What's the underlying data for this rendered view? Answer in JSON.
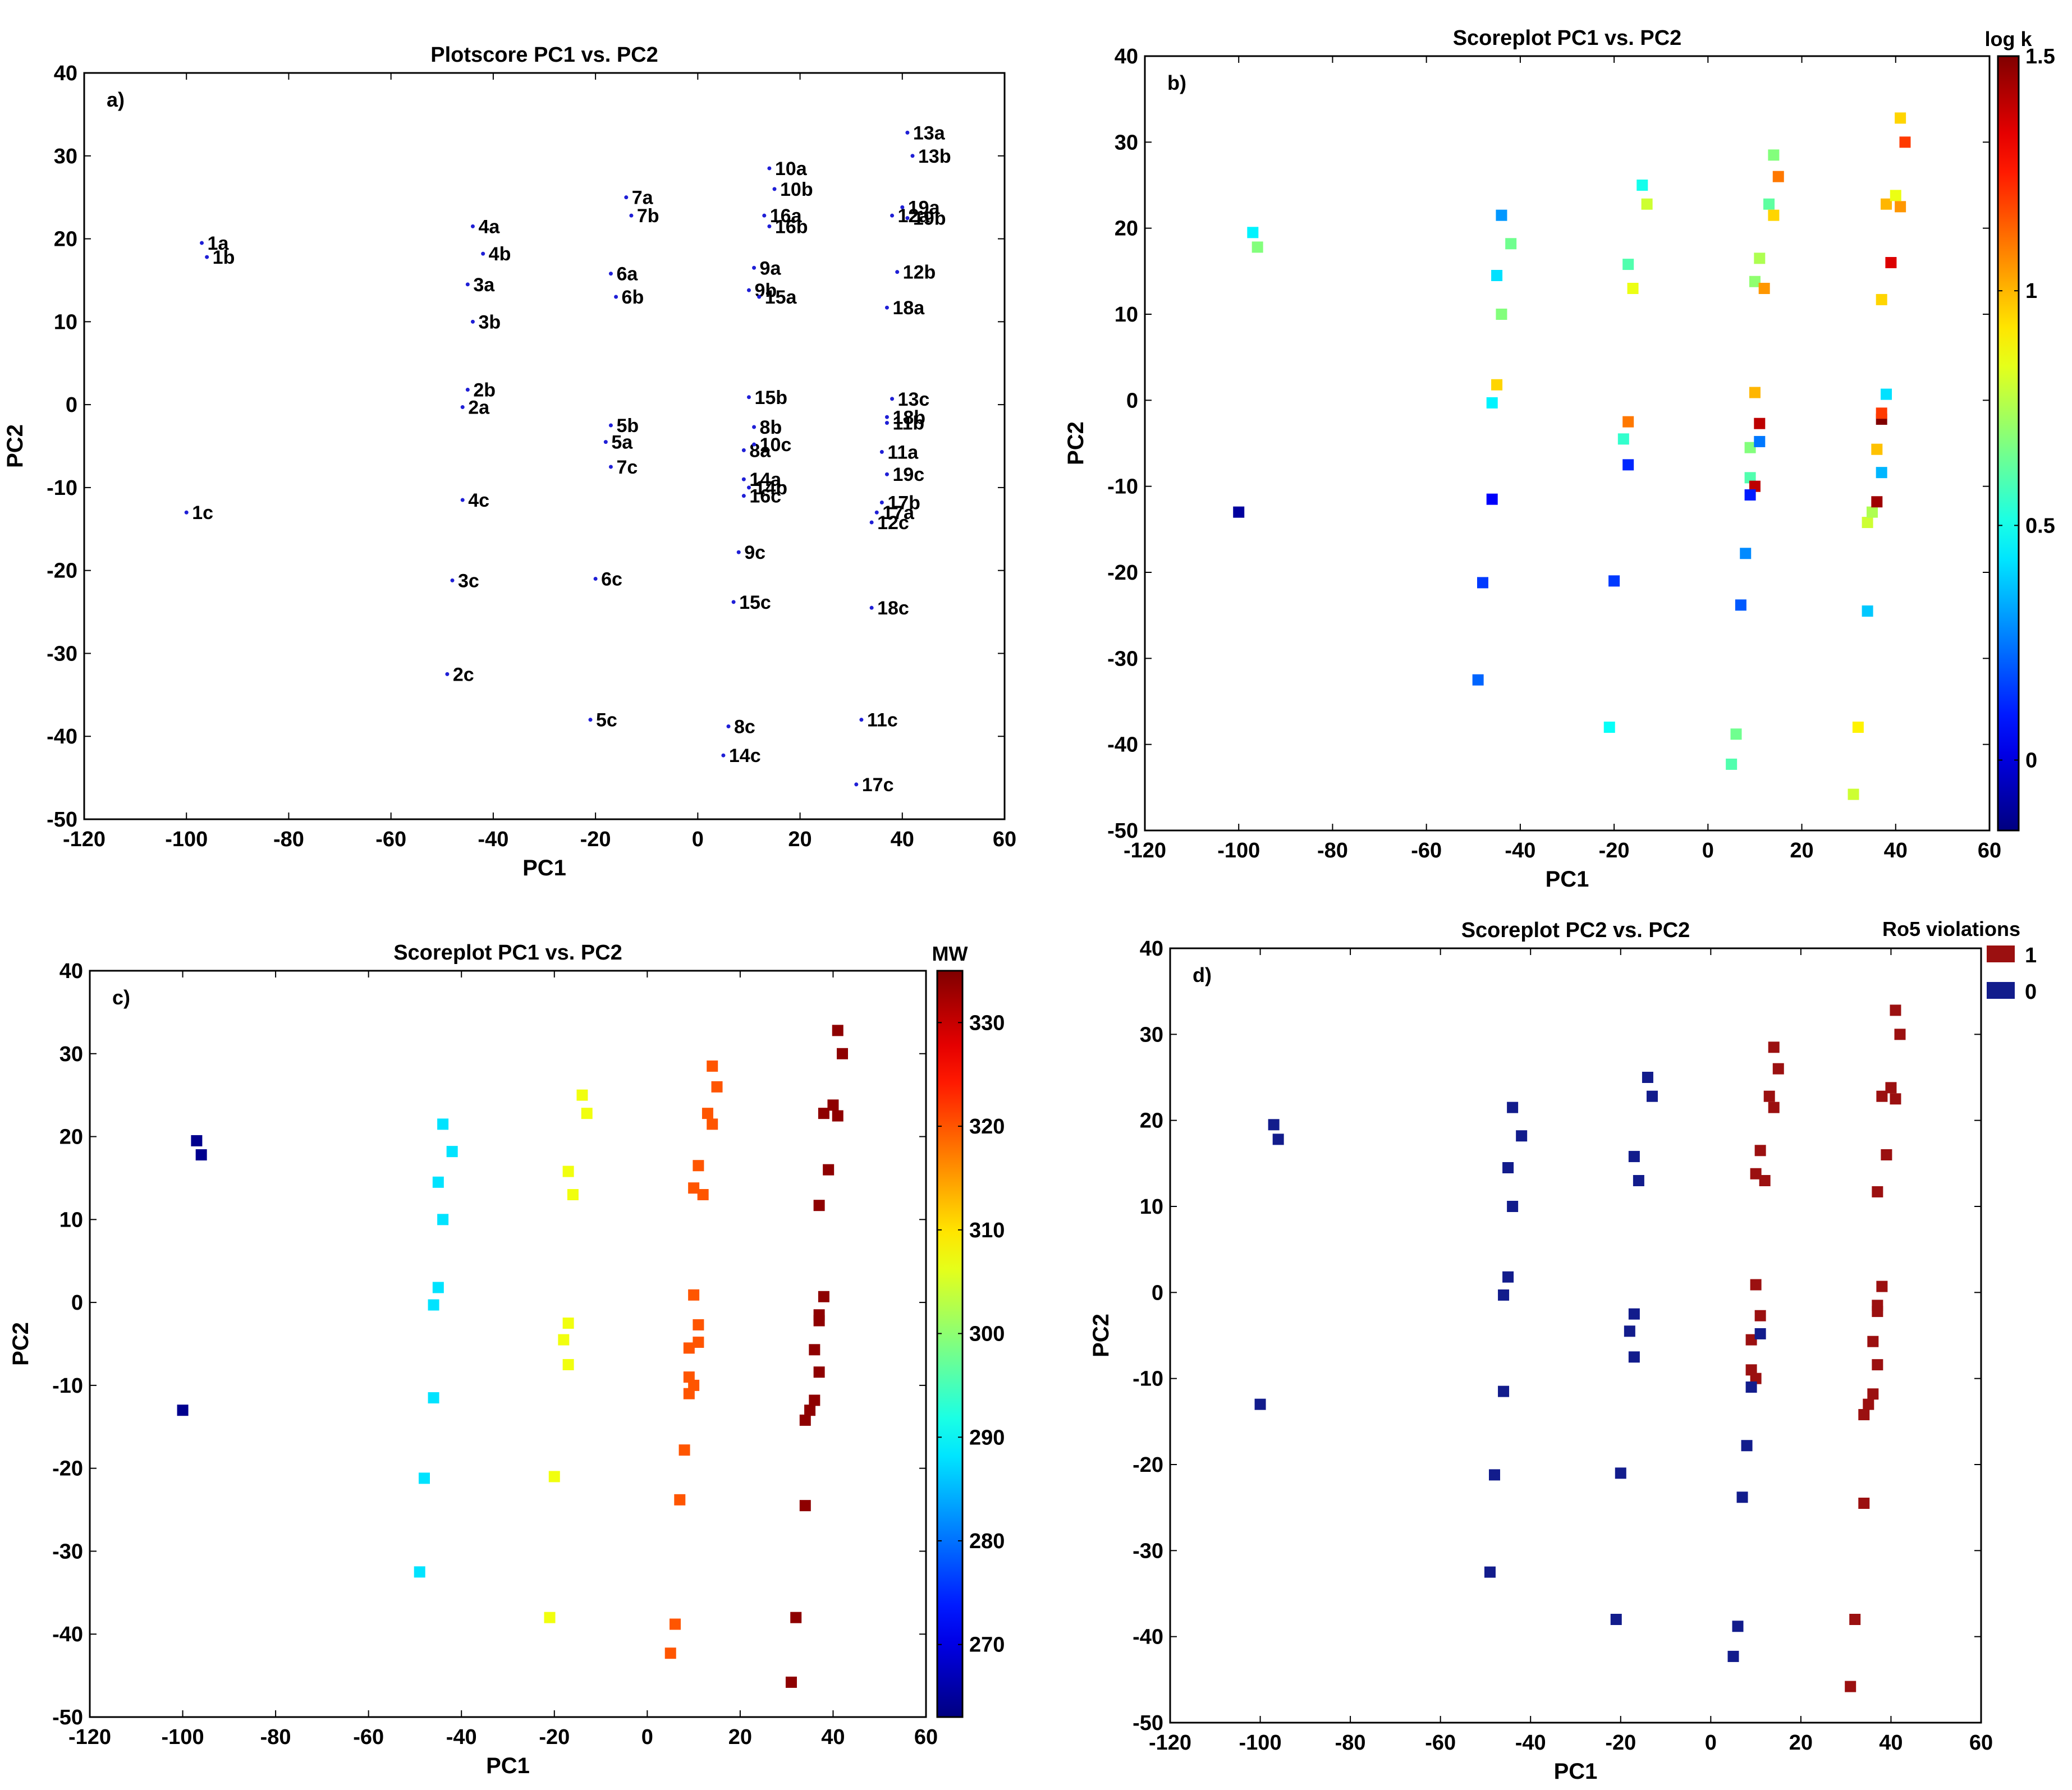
{
  "chart_data": [
    {
      "type": "scatter",
      "panel": "a)",
      "title": "Plotscore PC1 vs. PC2",
      "xlabel": "PC1",
      "ylabel": "PC2",
      "xlim": [
        -120,
        60
      ],
      "ylim": [
        -50,
        40
      ],
      "xticks": [
        -120,
        -100,
        -80,
        -60,
        -40,
        -20,
        0,
        20,
        40,
        60
      ],
      "yticks": [
        -50,
        -40,
        -30,
        -20,
        -10,
        0,
        10,
        20,
        30,
        40
      ],
      "grid": false,
      "marker_color": "#1f1fd6",
      "points": [
        {
          "label": "1a",
          "x": -97,
          "y": 19.5
        },
        {
          "label": "1b",
          "x": -96,
          "y": 17.8
        },
        {
          "label": "1c",
          "x": -100,
          "y": -13
        },
        {
          "label": "2a",
          "x": -46,
          "y": -0.3
        },
        {
          "label": "2b",
          "x": -45,
          "y": 1.8
        },
        {
          "label": "2c",
          "x": -49,
          "y": -32.5
        },
        {
          "label": "3a",
          "x": -45,
          "y": 14.5
        },
        {
          "label": "3b",
          "x": -44,
          "y": 10
        },
        {
          "label": "3c",
          "x": -48,
          "y": -21.2
        },
        {
          "label": "4a",
          "x": -44,
          "y": 21.5
        },
        {
          "label": "4b",
          "x": -42,
          "y": 18.2
        },
        {
          "label": "4c",
          "x": -46,
          "y": -11.5
        },
        {
          "label": "5a",
          "x": -18,
          "y": -4.5
        },
        {
          "label": "5b",
          "x": -17,
          "y": -2.5
        },
        {
          "label": "5c",
          "x": -21,
          "y": -38
        },
        {
          "label": "6a",
          "x": -17,
          "y": 15.8
        },
        {
          "label": "6b",
          "x": -16,
          "y": 13
        },
        {
          "label": "6c",
          "x": -20,
          "y": -21
        },
        {
          "label": "7a",
          "x": -14,
          "y": 25
        },
        {
          "label": "7b",
          "x": -13,
          "y": 22.8
        },
        {
          "label": "7c",
          "x": -17,
          "y": -7.5
        },
        {
          "label": "8a",
          "x": 9,
          "y": -5.5
        },
        {
          "label": "8b",
          "x": 11,
          "y": -2.7
        },
        {
          "label": "8c",
          "x": 6,
          "y": -38.8
        },
        {
          "label": "9a",
          "x": 11,
          "y": 16.5
        },
        {
          "label": "9b",
          "x": 10,
          "y": 13.8
        },
        {
          "label": "9c",
          "x": 8,
          "y": -17.8
        },
        {
          "label": "10a",
          "x": 14,
          "y": 28.5
        },
        {
          "label": "10b",
          "x": 15,
          "y": 26
        },
        {
          "label": "10c",
          "x": 11,
          "y": -4.8
        },
        {
          "label": "11a",
          "x": 36,
          "y": -5.7
        },
        {
          "label": "11b",
          "x": 37,
          "y": -2.2
        },
        {
          "label": "11c",
          "x": 32,
          "y": -38
        },
        {
          "label": "12a",
          "x": 38,
          "y": 22.8
        },
        {
          "label": "12b",
          "x": 39,
          "y": 16
        },
        {
          "label": "12c",
          "x": 34,
          "y": -14.2
        },
        {
          "label": "13a",
          "x": 41,
          "y": 32.8
        },
        {
          "label": "13b",
          "x": 42,
          "y": 30
        },
        {
          "label": "13c",
          "x": 38,
          "y": 0.7
        },
        {
          "label": "14a",
          "x": 9,
          "y": -9
        },
        {
          "label": "14b",
          "x": 10,
          "y": -10
        },
        {
          "label": "14c",
          "x": 5,
          "y": -42.3
        },
        {
          "label": "15a",
          "x": 12,
          "y": 13
        },
        {
          "label": "15b",
          "x": 10,
          "y": 0.9
        },
        {
          "label": "15c",
          "x": 7,
          "y": -23.8
        },
        {
          "label": "16a",
          "x": 13,
          "y": 22.8
        },
        {
          "label": "16b",
          "x": 14,
          "y": 21.5
        },
        {
          "label": "16c",
          "x": 9,
          "y": -11
        },
        {
          "label": "17a",
          "x": 35,
          "y": -13
        },
        {
          "label": "17b",
          "x": 36,
          "y": -11.8
        },
        {
          "label": "17c",
          "x": 31,
          "y": -45.8
        },
        {
          "label": "18a",
          "x": 37,
          "y": 11.7
        },
        {
          "label": "18b",
          "x": 37,
          "y": -1.5
        },
        {
          "label": "18c",
          "x": 34,
          "y": -24.5
        },
        {
          "label": "19a",
          "x": 40,
          "y": 23.8
        },
        {
          "label": "19b",
          "x": 41,
          "y": 22.5
        },
        {
          "label": "19c",
          "x": 37,
          "y": -8.4
        }
      ]
    },
    {
      "type": "scatter",
      "panel": "b)",
      "title": "Scoreplot PC1 vs. PC2",
      "xlabel": "PC1",
      "ylabel": "PC2",
      "xlim": [
        -120,
        60
      ],
      "ylim": [
        -50,
        40
      ],
      "xticks": [
        -120,
        -100,
        -80,
        -60,
        -40,
        -20,
        0,
        20,
        40,
        60
      ],
      "yticks": [
        -50,
        -40,
        -30,
        -20,
        -10,
        0,
        10,
        20,
        30,
        40
      ],
      "grid": false,
      "colorbar": {
        "label": "log k",
        "range": [
          -0.15,
          1.5
        ],
        "ticks": [
          0,
          0.5,
          1,
          1.5
        ],
        "tick_labels": [
          "0",
          "0.5",
          "1",
          "1.5"
        ],
        "colormap": "jet"
      },
      "values_by_label": {
        "1a": 0.45,
        "1b": 0.68,
        "1c": -0.1,
        "2a": 0.45,
        "2b": 0.95,
        "2c": 0.22,
        "3a": 0.42,
        "3b": 0.68,
        "3c": 0.15,
        "4a": 0.3,
        "4b": 0.65,
        "4c": 0.05,
        "5a": 0.55,
        "5b": 1.1,
        "5c": 0.48,
        "6a": 0.6,
        "6b": 0.85,
        "6c": 0.15,
        "7a": 0.5,
        "7b": 0.8,
        "7c": 0.12,
        "8a": 0.68,
        "8b": 1.4,
        "8c": 0.65,
        "9a": 0.75,
        "9b": 0.7,
        "9c": 0.28,
        "10a": 0.68,
        "10b": 1.1,
        "10c": 0.25,
        "11a": 0.98,
        "11b": 1.5,
        "11c": 0.9,
        "12a": 1.0,
        "12b": 1.35,
        "12c": 0.8,
        "13a": 0.95,
        "13b": 1.2,
        "13c": 0.42,
        "14a": 0.6,
        "14b": 1.4,
        "14c": 0.6,
        "15a": 1.05,
        "15b": 1.0,
        "15c": 0.2,
        "16a": 0.62,
        "16b": 0.95,
        "16c": 0.1,
        "17a": 0.75,
        "17b": 1.45,
        "17c": 0.8,
        "18a": 0.95,
        "18b": 1.2,
        "18c": 0.38,
        "19a": 0.85,
        "19b": 1.05,
        "19c": 0.35
      }
    },
    {
      "type": "scatter",
      "panel": "c)",
      "title": "Scoreplot PC1 vs. PC2",
      "xlabel": "PC1",
      "ylabel": "PC2",
      "xlim": [
        -120,
        60
      ],
      "ylim": [
        -50,
        40
      ],
      "xticks": [
        -120,
        -100,
        -80,
        -60,
        -40,
        -20,
        0,
        20,
        40,
        60
      ],
      "yticks": [
        -50,
        -40,
        -30,
        -20,
        -10,
        0,
        10,
        20,
        30,
        40
      ],
      "grid": false,
      "colorbar": {
        "label": "MW",
        "range": [
          263,
          335
        ],
        "ticks": [
          270,
          280,
          290,
          300,
          310,
          320,
          330
        ],
        "tick_labels": [
          "270",
          "280",
          "290",
          "300",
          "310",
          "320",
          "330"
        ],
        "colormap": "jet"
      },
      "values_by_label": {
        "1a": 264,
        "1b": 264,
        "1c": 264,
        "2a": 288,
        "2b": 288,
        "2c": 288,
        "3a": 288,
        "3b": 288,
        "3c": 288,
        "4a": 288,
        "4b": 288,
        "4c": 288,
        "5a": 307,
        "5b": 307,
        "5c": 307,
        "6a": 307,
        "6b": 307,
        "6c": 307,
        "7a": 307,
        "7b": 307,
        "7c": 307,
        "8a": 320,
        "8b": 320,
        "8c": 320,
        "9a": 320,
        "9b": 320,
        "9c": 320,
        "10a": 320,
        "10b": 320,
        "10c": 320,
        "14a": 320,
        "14b": 320,
        "14c": 320,
        "15a": 320,
        "15b": 320,
        "15c": 320,
        "16a": 320,
        "16b": 320,
        "16c": 320,
        "11a": 334,
        "11b": 334,
        "11c": 334,
        "12a": 334,
        "12b": 334,
        "12c": 334,
        "13a": 334,
        "13b": 334,
        "13c": 334,
        "17a": 334,
        "17b": 334,
        "17c": 334,
        "18a": 334,
        "18b": 334,
        "18c": 334,
        "19a": 334,
        "19b": 334,
        "19c": 334
      }
    },
    {
      "type": "scatter",
      "panel": "d)",
      "title": "Scoreplot PC2 vs. PC2",
      "xlabel": "PC1",
      "ylabel": "PC2",
      "xlim": [
        -120,
        60
      ],
      "ylim": [
        -50,
        40
      ],
      "xticks": [
        -120,
        -100,
        -80,
        -60,
        -40,
        -20,
        0,
        20,
        40,
        60
      ],
      "yticks": [
        -50,
        -40,
        -30,
        -20,
        -10,
        0,
        10,
        20,
        30,
        40
      ],
      "grid": false,
      "legend": {
        "title": "Ro5 violations",
        "position": "top-right",
        "entries": [
          {
            "label": "1",
            "color": "#9b1010"
          },
          {
            "label": "0",
            "color": "#121c8c"
          }
        ]
      },
      "values_by_label": {
        "1a": 0,
        "1b": 0,
        "1c": 0,
        "2a": 0,
        "2b": 0,
        "2c": 0,
        "3a": 0,
        "3b": 0,
        "3c": 0,
        "4a": 0,
        "4b": 0,
        "4c": 0,
        "5a": 0,
        "5b": 0,
        "5c": 0,
        "6a": 0,
        "6b": 0,
        "6c": 0,
        "7a": 0,
        "7b": 0,
        "7c": 0,
        "8c": 0,
        "9c": 0,
        "10c": 0,
        "14c": 0,
        "15c": 0,
        "16c": 0,
        "8a": 1,
        "8b": 1,
        "9a": 1,
        "9b": 1,
        "10a": 1,
        "10b": 1,
        "14a": 1,
        "14b": 1,
        "15a": 1,
        "15b": 1,
        "16a": 1,
        "16b": 1,
        "11a": 1,
        "11b": 1,
        "11c": 1,
        "12a": 1,
        "12b": 1,
        "12c": 1,
        "13a": 1,
        "13b": 1,
        "13c": 1,
        "17a": 1,
        "17b": 1,
        "17c": 1,
        "18a": 1,
        "18b": 1,
        "18c": 1,
        "19a": 1,
        "19b": 1,
        "19c": 1
      }
    }
  ]
}
